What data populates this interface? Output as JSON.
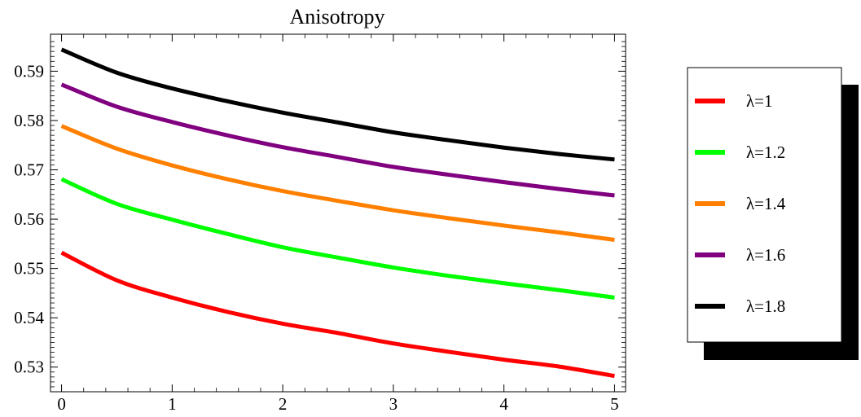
{
  "chart_data": {
    "type": "line",
    "title": "Anisotropy",
    "xlabel": "",
    "ylabel": "",
    "xlim": [
      -0.1,
      5.1
    ],
    "ylim": [
      0.525,
      0.5975
    ],
    "x_ticks": [
      0,
      1,
      2,
      3,
      4,
      5
    ],
    "y_ticks": [
      0.53,
      0.54,
      0.55,
      0.56,
      0.57,
      0.58,
      0.59
    ],
    "x_tick_labels": [
      "0",
      "1",
      "2",
      "3",
      "4",
      "5"
    ],
    "y_tick_labels": [
      "0.53",
      "0.54",
      "0.55",
      "0.56",
      "0.57",
      "0.58",
      "0.59"
    ],
    "grid": false,
    "legend_position": "right",
    "x": [
      0,
      0.5,
      1,
      1.5,
      2,
      2.5,
      3,
      3.5,
      4,
      4.5,
      5
    ],
    "series": [
      {
        "name": "λ=1",
        "color": "#ff0000",
        "values": [
          0.5532,
          0.5476,
          0.5441,
          0.5412,
          0.5388,
          0.5369,
          0.5348,
          0.5331,
          0.5315,
          0.5301,
          0.5282
        ]
      },
      {
        "name": "λ=1.2",
        "color": "#00ff00",
        "values": [
          0.5681,
          0.5631,
          0.5599,
          0.557,
          0.5543,
          0.5522,
          0.5502,
          0.5485,
          0.547,
          0.5456,
          0.5441
        ]
      },
      {
        "name": "λ=1.4",
        "color": "#ff8000",
        "values": [
          0.5789,
          0.5743,
          0.5709,
          0.5681,
          0.5657,
          0.5637,
          0.5618,
          0.5602,
          0.5587,
          0.5573,
          0.5558
        ]
      },
      {
        "name": "λ=1.6",
        "color": "#800080",
        "values": [
          0.5873,
          0.5828,
          0.5797,
          0.577,
          0.5746,
          0.5726,
          0.5706,
          0.569,
          0.5675,
          0.5661,
          0.5648
        ]
      },
      {
        "name": "λ=1.8",
        "color": "#000000",
        "values": [
          0.5944,
          0.5897,
          0.5865,
          0.5839,
          0.5816,
          0.5796,
          0.5776,
          0.576,
          0.5745,
          0.5732,
          0.5721
        ]
      }
    ]
  }
}
